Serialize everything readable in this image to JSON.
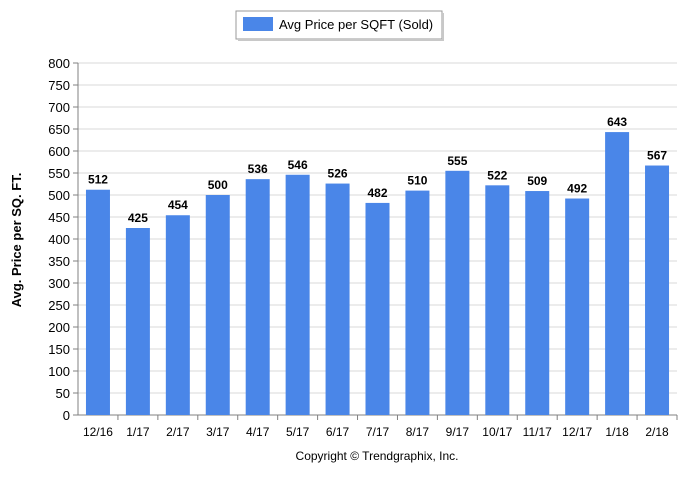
{
  "chart_data": {
    "type": "bar",
    "legend": "Avg Price per SQFT (Sold)",
    "legend_position": "top",
    "ylabel": "Avg. Price per SQ. FT.",
    "xlabel": "",
    "categories": [
      "12/16",
      "1/17",
      "2/17",
      "3/17",
      "4/17",
      "5/17",
      "6/17",
      "7/17",
      "8/17",
      "9/17",
      "10/17",
      "11/17",
      "12/17",
      "1/18",
      "2/18"
    ],
    "series": [
      {
        "name": "Avg Price per SQFT (Sold)",
        "values": [
          512,
          425,
          454,
          500,
          536,
          546,
          526,
          482,
          510,
          555,
          522,
          509,
          492,
          643,
          567
        ]
      }
    ],
    "ylim": [
      0,
      800
    ],
    "yticks": [
      0,
      50,
      100,
      150,
      200,
      250,
      300,
      350,
      400,
      450,
      500,
      550,
      600,
      650,
      700,
      750,
      800
    ],
    "grid": true,
    "bar_color": "#4a86e8",
    "footer": "Copyright © Trendgraphix, Inc."
  }
}
